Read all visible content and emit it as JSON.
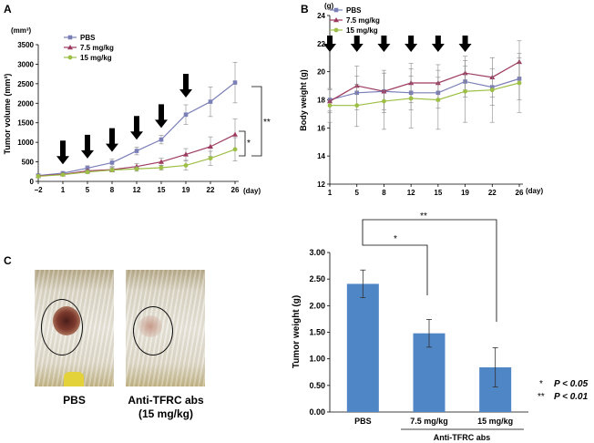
{
  "panels": {
    "A": "A",
    "B": "B",
    "C": "C"
  },
  "colors": {
    "pbs": "#7b7fb8",
    "mid": "#9c3a5f",
    "high": "#9dbf45",
    "bar": "#4f86c6",
    "arrow": "#000000"
  },
  "chart_data": [
    {
      "id": "A",
      "type": "line",
      "title": "",
      "ylabel": "Tumor volume (mm³)",
      "unit_label": "(mm³)",
      "xlabel": "(day)",
      "categories": [
        "−2",
        "1",
        "5",
        "8",
        "12",
        "15",
        "19",
        "22",
        "26"
      ],
      "ylim": [
        0,
        3500
      ],
      "yticks": [
        "0",
        "500",
        "1000",
        "1500",
        "2000",
        "2500",
        "3000",
        "3500"
      ],
      "series": [
        {
          "name": "PBS",
          "values": [
            150,
            210,
            340,
            480,
            780,
            1070,
            1710,
            2040,
            2530
          ],
          "errors": [
            40,
            40,
            60,
            90,
            100,
            110,
            250,
            380,
            520
          ]
        },
        {
          "name": "7.5 mg/kg",
          "values": [
            140,
            180,
            270,
            300,
            380,
            500,
            690,
            890,
            1200
          ],
          "errors": [
            30,
            30,
            50,
            60,
            80,
            90,
            150,
            250,
            400
          ]
        },
        {
          "name": "15 mg/kg",
          "values": [
            130,
            170,
            240,
            290,
            320,
            350,
            410,
            590,
            820
          ],
          "errors": [
            30,
            30,
            40,
            50,
            60,
            60,
            120,
            180,
            300
          ]
        }
      ],
      "treatment_days_index": [
        1,
        2,
        3,
        4,
        5,
        6
      ],
      "significance": [
        "**",
        "*"
      ]
    },
    {
      "id": "B",
      "type": "line",
      "title": "",
      "ylabel": "Body weight (g)",
      "unit_label": "(g)",
      "xlabel": "(day)",
      "categories": [
        "1",
        "5",
        "8",
        "12",
        "15",
        "19",
        "22",
        "26"
      ],
      "ylim": [
        12,
        24
      ],
      "yticks": [
        "12",
        "14",
        "16",
        "18",
        "20",
        "22",
        "24"
      ],
      "series": [
        {
          "name": "PBS",
          "values": [
            18.0,
            18.5,
            18.6,
            18.5,
            18.5,
            19.3,
            18.9,
            19.5
          ],
          "errors": [
            0.8,
            1.2,
            1.3,
            1.2,
            1.1,
            1.1,
            1.3,
            1.5
          ]
        },
        {
          "name": "7.5 mg/kg",
          "values": [
            17.9,
            19.0,
            18.6,
            19.2,
            19.2,
            19.9,
            19.6,
            20.7
          ],
          "errors": [
            0.8,
            1.4,
            1.5,
            1.4,
            1.3,
            1.2,
            1.4,
            1.5
          ]
        },
        {
          "name": "15 mg/kg",
          "values": [
            17.6,
            17.6,
            17.9,
            18.1,
            18.0,
            18.6,
            18.7,
            19.2
          ],
          "errors": [
            1.2,
            1.5,
            2.0,
            2.1,
            2.1,
            2.2,
            2.3,
            2.1
          ]
        }
      ],
      "treatment_days_index": [
        0,
        1,
        2,
        3,
        4,
        5
      ]
    },
    {
      "id": "C",
      "type": "bar",
      "title": "",
      "ylabel": "Tumor weight (g)",
      "xlabel": "",
      "categories": [
        "PBS",
        "7.5 mg/kg",
        "15 mg/kg"
      ],
      "values": [
        2.41,
        1.48,
        0.84
      ],
      "errors": [
        0.26,
        0.26,
        0.37
      ],
      "ylim": [
        0,
        3
      ],
      "yticks": [
        "0.00",
        "0.50",
        "1.00",
        "1.50",
        "2.00",
        "2.50",
        "3.00"
      ],
      "group_label": "Anti-TFRC abs",
      "significance": [
        "*",
        "**"
      ],
      "pvalue_legend": [
        {
          "symbol": "*",
          "text": "P < 0.05"
        },
        {
          "symbol": "**",
          "text": "P < 0.01"
        }
      ]
    }
  ],
  "photos": {
    "left_caption": "PBS",
    "right_caption_line1": "Anti-TFRC abs",
    "right_caption_line2": "(15 mg/kg)"
  }
}
